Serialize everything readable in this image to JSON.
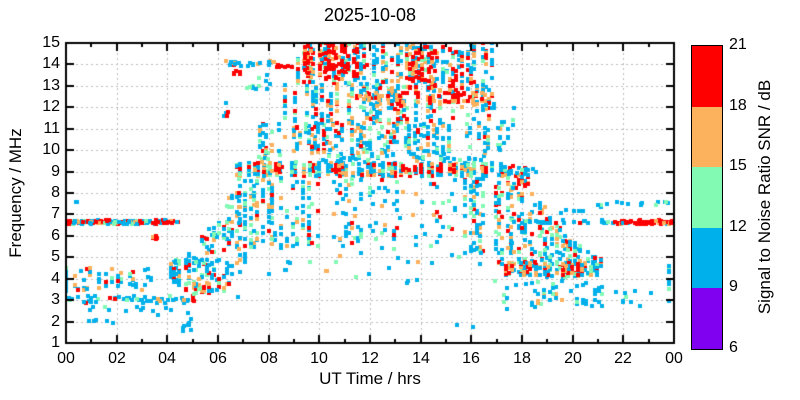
{
  "window": {
    "background": "#ffffff"
  },
  "chart_data": {
    "type": "scatter",
    "title": "2025-10-08",
    "xlabel": "UT Time / hrs",
    "ylabel": "Frequency / MHz",
    "xlim": [
      0,
      24
    ],
    "ylim": [
      1,
      15
    ],
    "x_tick_values": [
      0,
      2,
      4,
      6,
      8,
      10,
      12,
      14,
      16,
      18,
      20,
      22,
      24
    ],
    "x_tick_labels": [
      "00",
      "02",
      "04",
      "06",
      "08",
      "10",
      "12",
      "14",
      "16",
      "18",
      "20",
      "22",
      "00"
    ],
    "x_minor_step": 1,
    "y_tick_values": [
      1,
      2,
      3,
      4,
      5,
      6,
      7,
      8,
      9,
      10,
      11,
      12,
      13,
      14,
      15
    ],
    "grid": {
      "on": true,
      "x_values": [
        2,
        4,
        6,
        8,
        10,
        12,
        14,
        16,
        18,
        20,
        22
      ],
      "y_values": [
        2,
        3,
        4,
        5,
        6,
        7,
        8,
        9,
        10,
        11,
        12,
        13,
        14
      ],
      "color": "#bcbcbc",
      "dash": [
        2,
        3
      ]
    },
    "marker": "square",
    "marker_size_px": 4,
    "value_unit": "dB SNR",
    "palette": {
      "B": "#00b0eb",
      "G": "#82fab4",
      "O": "#fcb15c",
      "R": "#ff0000",
      "P": "#8000f0"
    },
    "colorbar": {
      "label": "Signal to Noise Ratio SNR / dB",
      "min": 6,
      "max": 21,
      "ticks": [
        6,
        9,
        12,
        15,
        18,
        21
      ],
      "segments_top_to_bottom": [
        {
          "range": [
            18,
            21
          ],
          "color": "#ff0000",
          "name": "red"
        },
        {
          "range": [
            15,
            18
          ],
          "color": "#fcb15c",
          "name": "orange"
        },
        {
          "range": [
            12,
            15
          ],
          "color": "#82fab4",
          "name": "green"
        },
        {
          "range": [
            9,
            12
          ],
          "color": "#00b0eb",
          "name": "blue"
        },
        {
          "range": [
            6,
            9
          ],
          "color": "#8000f0",
          "name": "purple"
        }
      ]
    },
    "seed": 42,
    "clusters": [
      {
        "name": "line-6.6-morning-a",
        "shape": "line",
        "t": [
          0.05,
          2.2
        ],
        "f": [
          6.55,
          6.72
        ],
        "n": 85,
        "w": {
          "R": 0.45,
          "O": 0.12,
          "B": 0.33,
          "G": 0.1
        }
      },
      {
        "name": "line-6.6-morning-b",
        "shape": "line",
        "t": [
          2.2,
          3.35
        ],
        "f": [
          6.55,
          6.72
        ],
        "n": 38,
        "w": {
          "R": 0.18,
          "O": 0.12,
          "B": 0.55,
          "G": 0.15
        }
      },
      {
        "name": "line-6.6-morning-c",
        "shape": "line",
        "t": [
          3.4,
          4.45
        ],
        "f": [
          6.55,
          6.75
        ],
        "n": 26,
        "w": {
          "R": 0.5,
          "O": 0.15,
          "B": 0.3,
          "G": 0.05
        }
      },
      {
        "name": "red-blob-5.9",
        "shape": "cloud",
        "t": [
          3.38,
          3.62
        ],
        "f": [
          5.85,
          6.05
        ],
        "n": 7,
        "w": {
          "R": 0.8,
          "O": 0.2
        }
      },
      {
        "name": "dot-7.6-morning",
        "shape": "cloud",
        "t": [
          0.38,
          0.55
        ],
        "f": [
          7.5,
          7.65
        ],
        "n": 2,
        "w": {
          "B": 1
        }
      },
      {
        "name": "row-3.0-morning",
        "shape": "line",
        "t": [
          0.0,
          5.1
        ],
        "f": [
          2.85,
          3.2
        ],
        "n": 55,
        "w": {
          "B": 0.8,
          "G": 0.1,
          "O": 0.06,
          "R": 0.04
        }
      },
      {
        "name": "scatter-4-morning",
        "shape": "columns",
        "t": [
          0.0,
          3.4
        ],
        "f": [
          3.45,
          4.55
        ],
        "n": 55,
        "w": {
          "B": 0.7,
          "G": 0.12,
          "O": 0.13,
          "R": 0.05
        }
      },
      {
        "name": "scatter-2.5-morning",
        "shape": "cloud",
        "t": [
          0.5,
          5.8
        ],
        "f": [
          2.3,
          2.7
        ],
        "n": 13,
        "w": {
          "B": 0.92,
          "G": 0.08
        }
      },
      {
        "name": "dots-2.0-a",
        "shape": "cloud",
        "t": [
          0.8,
          1.9
        ],
        "f": [
          1.9,
          2.15
        ],
        "n": 5,
        "w": {
          "B": 1
        }
      },
      {
        "name": "dots-2.0-b",
        "shape": "cloud",
        "t": [
          4.5,
          5.05
        ],
        "f": [
          1.55,
          2.2
        ],
        "n": 8,
        "w": {
          "B": 1
        }
      },
      {
        "name": "edge-col-left",
        "shape": "columns",
        "t": [
          0.0,
          0.18
        ],
        "f": [
          2.8,
          4.5
        ],
        "n": 12,
        "w": {
          "B": 0.85,
          "G": 0.15
        }
      },
      {
        "name": "edge-col-right",
        "shape": "columns",
        "t": [
          23.8,
          24.0
        ],
        "f": [
          2.8,
          4.6
        ],
        "n": 14,
        "w": {
          "B": 0.9,
          "G": 0.1
        }
      },
      {
        "name": "rise-dawn",
        "shape": "env",
        "t": [
          4.15,
          7.05
        ],
        "n": 230,
        "w": {
          "B": 0.5,
          "G": 0.2,
          "O": 0.17,
          "R": 0.13
        },
        "upper": [
          [
            4.15,
            4.8
          ],
          [
            5.0,
            5.3
          ],
          [
            5.7,
            6.6
          ],
          [
            6.3,
            7.6
          ],
          [
            7.05,
            8.6
          ]
        ],
        "lower": [
          [
            4.15,
            3.9
          ],
          [
            5.0,
            3.2
          ],
          [
            5.7,
            3.1
          ],
          [
            6.3,
            3.4
          ],
          [
            7.05,
            4.4
          ]
        ]
      },
      {
        "name": "line-14-pre",
        "shape": "line",
        "t": [
          6.3,
          8.3
        ],
        "f": [
          13.9,
          14.15
        ],
        "n": 22,
        "w": {
          "B": 0.55,
          "O": 0.32,
          "R": 0.13
        }
      },
      {
        "name": "line-14-red",
        "shape": "line",
        "t": [
          8.25,
          8.95
        ],
        "f": [
          13.85,
          14.0
        ],
        "n": 9,
        "w": {
          "R": 0.9,
          "O": 0.1
        }
      },
      {
        "name": "red-13.6",
        "shape": "cloud",
        "t": [
          6.6,
          6.95
        ],
        "f": [
          13.5,
          13.7
        ],
        "n": 5,
        "w": {
          "R": 0.85,
          "B": 0.15
        }
      },
      {
        "name": "blue-13.3",
        "shape": "cloud",
        "t": [
          6.85,
          8.05
        ],
        "f": [
          12.85,
          13.6
        ],
        "n": 13,
        "w": {
          "B": 0.8,
          "G": 0.2
        }
      },
      {
        "name": "red-11.6",
        "shape": "cloud",
        "t": [
          6.2,
          6.5
        ],
        "f": [
          11.55,
          11.78
        ],
        "n": 4,
        "w": {
          "R": 0.8,
          "B": 0.2
        }
      },
      {
        "name": "dot-12.2",
        "shape": "cloud",
        "t": [
          6.25,
          6.4
        ],
        "f": [
          12.1,
          12.3
        ],
        "n": 1,
        "w": {
          "B": 1
        }
      },
      {
        "name": "band-9",
        "shape": "columns",
        "t": [
          6.75,
          17.35
        ],
        "f": [
          8.78,
          9.42
        ],
        "n": 470,
        "w": {
          "B": 0.44,
          "G": 0.2,
          "O": 0.2,
          "R": 0.16
        }
      },
      {
        "name": "band-9-red-clumps",
        "shape": "clumps",
        "f": [
          8.95,
          9.35
        ],
        "n": 58,
        "w": {
          "R": 0.85,
          "O": 0.15
        },
        "spans": [
          [
            8.15,
            8.6
          ],
          [
            10.4,
            11.0
          ],
          [
            13.3,
            14.2
          ],
          [
            14.7,
            15.4
          ],
          [
            16.2,
            16.6
          ]
        ]
      },
      {
        "name": "band-9-upper-fringe",
        "shape": "columns",
        "t": [
          6.9,
          17.2
        ],
        "f": [
          9.45,
          9.85
        ],
        "n": 70,
        "w": {
          "B": 0.6,
          "G": 0.3,
          "O": 0.1
        }
      },
      {
        "name": "cloud-mid",
        "shape": "columns",
        "t": [
          7.55,
          17.15
        ],
        "f": [
          9.85,
          11.25
        ],
        "n": 290,
        "w": {
          "B": 0.52,
          "G": 0.22,
          "O": 0.16,
          "R": 0.1
        }
      },
      {
        "name": "cloud-upper",
        "shape": "columns",
        "t": [
          8.3,
          16.9
        ],
        "f": [
          11.25,
          13.1
        ],
        "n": 330,
        "w": {
          "B": 0.48,
          "G": 0.15,
          "O": 0.21,
          "R": 0.16
        }
      },
      {
        "name": "streak-12.4",
        "shape": "clumps",
        "f": [
          12.2,
          12.7
        ],
        "n": 80,
        "w": {
          "O": 0.5,
          "R": 0.5
        },
        "spans": [
          [
            11.5,
            13.4
          ],
          [
            13.9,
            16.6
          ]
        ]
      },
      {
        "name": "cloud-top",
        "shape": "columns",
        "t": [
          8.9,
          16.85
        ],
        "f": [
          13.1,
          15.0
        ],
        "n": 360,
        "w": {
          "B": 0.46,
          "G": 0.14,
          "O": 0.16,
          "R": 0.24
        }
      },
      {
        "name": "top-red-morning",
        "shape": "columns",
        "t": [
          9.2,
          11.7
        ],
        "f": [
          13.3,
          15.0
        ],
        "n": 110,
        "w": {
          "R": 0.8,
          "O": 0.2
        }
      },
      {
        "name": "top-red-afternoon",
        "shape": "columns",
        "t": [
          13.35,
          15.65
        ],
        "f": [
          12.8,
          14.7
        ],
        "n": 70,
        "w": {
          "R": 0.75,
          "O": 0.25
        }
      },
      {
        "name": "below-band-early",
        "shape": "columns",
        "t": [
          6.7,
          9.6
        ],
        "f": [
          5.3,
          8.7
        ],
        "n": 150,
        "w": {
          "B": 0.55,
          "G": 0.2,
          "O": 0.15,
          "R": 0.1
        }
      },
      {
        "name": "below-band-mid",
        "shape": "columns",
        "t": [
          9.6,
          15.4
        ],
        "f": [
          5.4,
          8.7
        ],
        "n": 110,
        "w": {
          "B": 0.6,
          "G": 0.2,
          "O": 0.12,
          "R": 0.08
        }
      },
      {
        "name": "below-band-late",
        "shape": "columns",
        "t": [
          15.4,
          17.6
        ],
        "f": [
          5.2,
          8.7
        ],
        "n": 120,
        "w": {
          "B": 0.55,
          "G": 0.18,
          "O": 0.15,
          "R": 0.12
        }
      },
      {
        "name": "sparse-4-midday",
        "shape": "cloud",
        "t": [
          7.0,
          17.0
        ],
        "f": [
          3.6,
          5.2
        ],
        "n": 26,
        "w": {
          "B": 0.75,
          "G": 0.15,
          "O": 0.1
        }
      },
      {
        "name": "dusk-descent",
        "shape": "env",
        "t": [
          16.9,
          21.1
        ],
        "n": 260,
        "w": {
          "B": 0.5,
          "G": 0.2,
          "O": 0.15,
          "R": 0.15
        },
        "upper": [
          [
            16.9,
            9.3
          ],
          [
            17.8,
            8.6
          ],
          [
            18.6,
            7.8
          ],
          [
            19.4,
            6.7
          ],
          [
            20.2,
            5.6
          ],
          [
            21.1,
            5.1
          ]
        ],
        "lower": [
          [
            16.9,
            4.6
          ],
          [
            17.8,
            4.2
          ],
          [
            18.6,
            4.0
          ],
          [
            19.4,
            4.0
          ],
          [
            20.2,
            4.1
          ],
          [
            21.1,
            4.3
          ]
        ]
      },
      {
        "name": "dusk-red-9",
        "shape": "columns",
        "t": [
          17.15,
          18.35
        ],
        "f": [
          8.2,
          9.25
        ],
        "n": 30,
        "w": {
          "R": 0.6,
          "B": 0.3,
          "O": 0.1
        }
      },
      {
        "name": "line-4.5-dusk",
        "shape": "columns",
        "t": [
          17.35,
          21.0
        ],
        "f": [
          4.15,
          4.75
        ],
        "n": 120,
        "w": {
          "R": 0.34,
          "O": 0.3,
          "B": 0.26,
          "G": 0.1
        }
      },
      {
        "name": "band-9-tail",
        "shape": "cloud",
        "t": [
          17.4,
          18.55
        ],
        "f": [
          8.85,
          9.15
        ],
        "n": 12,
        "w": {
          "B": 0.95,
          "G": 0.05
        }
      },
      {
        "name": "upper-tail",
        "shape": "cloud",
        "t": [
          16.9,
          17.7
        ],
        "f": [
          10.0,
          12.2
        ],
        "n": 16,
        "w": {
          "B": 0.85,
          "G": 0.15
        }
      },
      {
        "name": "line-6.6-evening-blue",
        "shape": "line",
        "t": [
          18.0,
          21.6
        ],
        "f": [
          6.55,
          6.72
        ],
        "n": 26,
        "w": {
          "B": 0.85,
          "G": 0.1,
          "R": 0.05
        }
      },
      {
        "name": "line-6.6-evening-red",
        "shape": "line",
        "t": [
          21.6,
          23.6
        ],
        "f": [
          6.55,
          6.72
        ],
        "n": 48,
        "w": {
          "R": 0.72,
          "O": 0.12,
          "B": 0.16
        }
      },
      {
        "name": "line-6.6-evening-end",
        "shape": "line",
        "t": [
          23.6,
          23.98
        ],
        "f": [
          6.55,
          6.72
        ],
        "n": 9,
        "w": {
          "O": 0.65,
          "R": 0.25,
          "B": 0.1
        }
      },
      {
        "name": "dots-7.5-evening",
        "shape": "cloud",
        "t": [
          20.4,
          23.9
        ],
        "f": [
          7.3,
          7.62
        ],
        "n": 15,
        "w": {
          "B": 0.85,
          "G": 0.15
        }
      },
      {
        "name": "dots-7.1-evening",
        "shape": "cloud",
        "t": [
          19.55,
          20.4
        ],
        "f": [
          7.0,
          7.25
        ],
        "n": 5,
        "w": {
          "B": 1
        }
      },
      {
        "name": "evening-low",
        "shape": "columns",
        "t": [
          17.3,
          21.6
        ],
        "f": [
          2.6,
          3.9
        ],
        "n": 55,
        "w": {
          "B": 0.75,
          "G": 0.2,
          "O": 0.05
        }
      },
      {
        "name": "evening-low-sparse",
        "shape": "cloud",
        "t": [
          21.6,
          23.7
        ],
        "f": [
          2.7,
          3.5
        ],
        "n": 9,
        "w": {
          "B": 0.9,
          "G": 0.1
        }
      },
      {
        "name": "lone-dots-1.8",
        "shape": "cloud",
        "t": [
          15.0,
          16.1
        ],
        "f": [
          1.7,
          1.95
        ],
        "n": 2,
        "w": {
          "B": 1
        }
      },
      {
        "name": "lone-dot-3.05",
        "shape": "cloud",
        "t": [
          6.7,
          6.85
        ],
        "f": [
          3.0,
          3.15
        ],
        "n": 1,
        "w": {
          "B": 1
        }
      }
    ]
  }
}
